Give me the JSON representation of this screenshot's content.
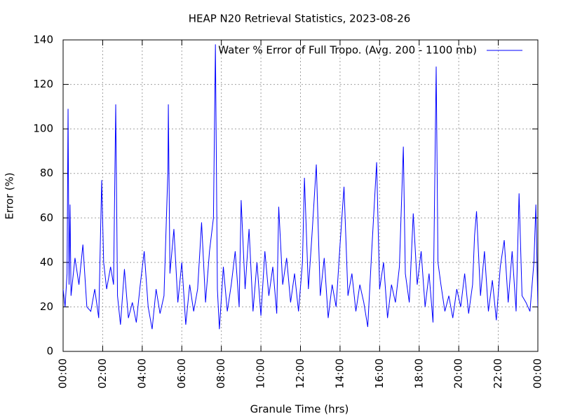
{
  "chart_data": {
    "type": "line",
    "title": "HEAP N20 Retrieval Statistics, 2023-08-26",
    "xlabel": "Granule Time (hrs)",
    "ylabel": "Error (%)",
    "legend_position": "upper right",
    "grid": true,
    "xlim": [
      0,
      24
    ],
    "xticks": [
      {
        "value": 0,
        "label": "00:00"
      },
      {
        "value": 2,
        "label": "02:00"
      },
      {
        "value": 4,
        "label": "04:00"
      },
      {
        "value": 6,
        "label": "06:00"
      },
      {
        "value": 8,
        "label": "08:00"
      },
      {
        "value": 10,
        "label": "10:00"
      },
      {
        "value": 12,
        "label": "12:00"
      },
      {
        "value": 14,
        "label": "14:00"
      },
      {
        "value": 16,
        "label": "16:00"
      },
      {
        "value": 18,
        "label": "18:00"
      },
      {
        "value": 20,
        "label": "20:00"
      },
      {
        "value": 22,
        "label": "22:00"
      },
      {
        "value": 24,
        "label": "00:00"
      }
    ],
    "ylim": [
      0,
      140
    ],
    "yticks": [
      0,
      20,
      40,
      60,
      80,
      100,
      120,
      140
    ],
    "x": [
      0,
      0.1,
      0.2,
      0.25,
      0.3,
      0.35,
      0.4,
      0.6,
      0.8,
      1.0,
      1.2,
      1.4,
      1.6,
      1.8,
      1.95,
      2.05,
      2.2,
      2.4,
      2.55,
      2.66,
      2.75,
      2.9,
      3.1,
      3.3,
      3.5,
      3.7,
      3.9,
      4.1,
      4.3,
      4.5,
      4.7,
      4.9,
      5.1,
      5.3,
      5.32,
      5.4,
      5.6,
      5.8,
      6.0,
      6.2,
      6.4,
      6.6,
      6.8,
      7.0,
      7.2,
      7.4,
      7.6,
      7.7,
      7.8,
      7.9,
      8.1,
      8.3,
      8.5,
      8.7,
      8.9,
      9.0,
      9.2,
      9.4,
      9.6,
      9.8,
      10.0,
      10.2,
      10.4,
      10.6,
      10.8,
      10.9,
      11.1,
      11.3,
      11.5,
      11.7,
      11.9,
      12.1,
      12.2,
      12.4,
      12.6,
      12.8,
      13.0,
      13.2,
      13.4,
      13.6,
      13.8,
      14.0,
      14.2,
      14.4,
      14.6,
      14.8,
      15.0,
      15.2,
      15.4,
      15.6,
      15.85,
      16.0,
      16.2,
      16.4,
      16.6,
      16.8,
      17.0,
      17.2,
      17.3,
      17.5,
      17.7,
      17.9,
      18.1,
      18.3,
      18.5,
      18.7,
      18.86,
      18.95,
      19.1,
      19.3,
      19.5,
      19.7,
      19.9,
      20.1,
      20.3,
      20.5,
      20.7,
      20.8,
      20.9,
      21.1,
      21.3,
      21.5,
      21.7,
      21.9,
      22.1,
      22.3,
      22.5,
      22.7,
      22.9,
      23.05,
      23.2,
      23.4,
      23.6,
      23.8,
      23.9,
      24.0
    ],
    "series": [
      {
        "name": "Water % Error of Full Tropo. (Avg. 200 - 1100 mb)",
        "color": "#0000ff",
        "values": [
          28,
          20,
          35,
          109,
          30,
          66,
          25,
          42,
          30,
          48,
          20,
          18,
          28,
          15,
          77,
          40,
          28,
          38,
          30,
          111,
          25,
          12,
          37,
          15,
          22,
          13,
          30,
          45,
          20,
          10,
          28,
          17,
          25,
          82,
          111,
          35,
          55,
          22,
          40,
          12,
          30,
          18,
          28,
          58,
          22,
          45,
          60,
          138,
          28,
          10,
          38,
          18,
          30,
          45,
          20,
          68,
          28,
          55,
          18,
          40,
          16,
          45,
          25,
          38,
          17,
          65,
          30,
          42,
          22,
          35,
          18,
          40,
          78,
          28,
          55,
          84,
          25,
          42,
          15,
          30,
          20,
          48,
          74,
          25,
          35,
          18,
          30,
          22,
          11,
          45,
          85,
          28,
          40,
          15,
          30,
          22,
          38,
          92,
          35,
          22,
          62,
          30,
          45,
          20,
          35,
          13,
          128,
          40,
          30,
          18,
          25,
          15,
          28,
          20,
          35,
          17,
          30,
          52,
          63,
          25,
          45,
          18,
          32,
          14,
          38,
          50,
          22,
          45,
          18,
          71,
          25,
          22,
          18,
          40,
          66,
          20
        ]
      }
    ]
  }
}
